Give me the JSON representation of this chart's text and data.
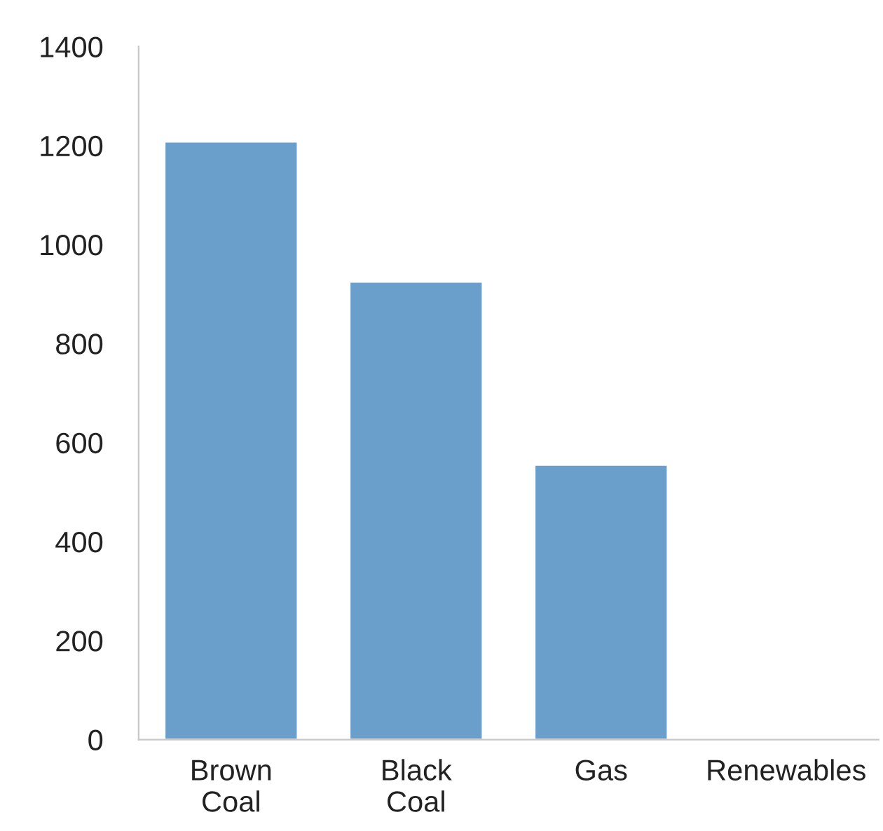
{
  "chart_data": {
    "type": "bar",
    "categories": [
      "Brown\nCoal",
      "Black\nCoal",
      "Gas",
      "Renewables"
    ],
    "values": [
      1208,
      925,
      555,
      null
    ],
    "color": "#6a9ecb",
    "ylim": [
      0,
      1400
    ],
    "yticks": [
      0,
      200,
      400,
      600,
      800,
      1000,
      1200,
      1400
    ],
    "grid": false
  }
}
